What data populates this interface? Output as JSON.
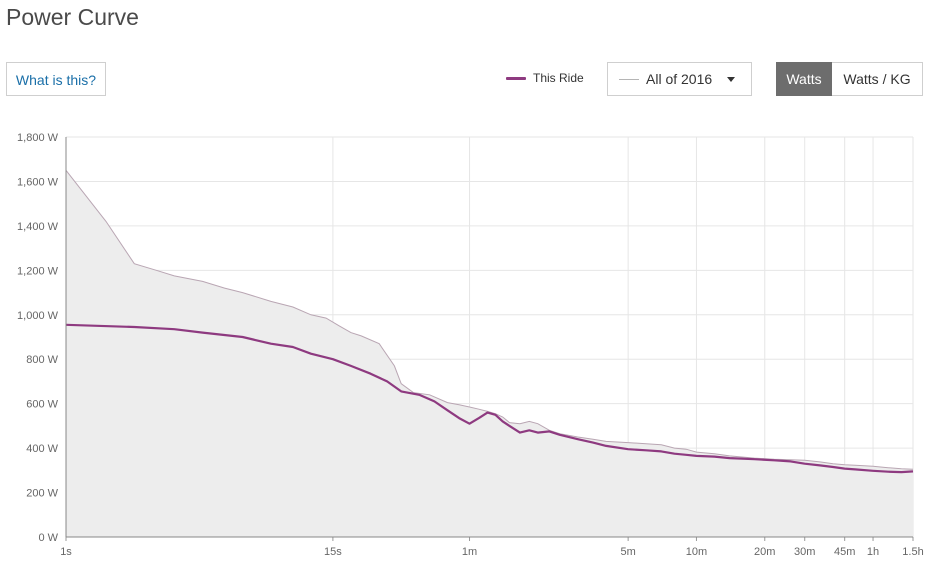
{
  "header": {
    "title": "Power Curve"
  },
  "help_button": {
    "label": "What is this?"
  },
  "legend": {
    "this_ride_label": "This Ride"
  },
  "range_select": {
    "selected": "All of 2016"
  },
  "unit_toggle": {
    "watts_label": "Watts",
    "wkg_label": "Watts / KG",
    "active": "Watts"
  },
  "colors": {
    "this_ride": "#8e3a80",
    "all_2016": "#b9a6b3",
    "all_2016_fill": "#ededed",
    "grid": "#e6e6e6",
    "active_toggle": "#6d6d6d"
  },
  "chart_data": {
    "type": "area",
    "x_scale": "log",
    "x_unit": "seconds",
    "y_unit": "W",
    "ylim": [
      0,
      1800
    ],
    "xlim": [
      1,
      5400
    ],
    "grid": true,
    "y_ticks": [
      {
        "value": 0,
        "label": "0 W"
      },
      {
        "value": 200,
        "label": "200 W"
      },
      {
        "value": 400,
        "label": "400 W"
      },
      {
        "value": 600,
        "label": "600 W"
      },
      {
        "value": 800,
        "label": "800 W"
      },
      {
        "value": 1000,
        "label": "1,000 W"
      },
      {
        "value": 1200,
        "label": "1,200 W"
      },
      {
        "value": 1400,
        "label": "1,400 W"
      },
      {
        "value": 1600,
        "label": "1,600 W"
      },
      {
        "value": 1800,
        "label": "1,800 W"
      }
    ],
    "x_ticks": [
      {
        "value": 1,
        "label": "1s"
      },
      {
        "value": 15,
        "label": "15s"
      },
      {
        "value": 60,
        "label": "1m"
      },
      {
        "value": 300,
        "label": "5m"
      },
      {
        "value": 600,
        "label": "10m"
      },
      {
        "value": 1200,
        "label": "20m"
      },
      {
        "value": 1800,
        "label": "30m"
      },
      {
        "value": 2700,
        "label": "45m"
      },
      {
        "value": 3600,
        "label": "1h"
      },
      {
        "value": 5400,
        "label": "1.5h"
      }
    ],
    "series": [
      {
        "name": "This Ride",
        "x": [
          1,
          2,
          3,
          4,
          6,
          8,
          10,
          12,
          15,
          18,
          22,
          26,
          30,
          36,
          42,
          48,
          54,
          60,
          66,
          72,
          78,
          84,
          90,
          100,
          110,
          120,
          135,
          150,
          180,
          210,
          240,
          300,
          360,
          420,
          480,
          540,
          600,
          720,
          840,
          1080,
          1320,
          1560,
          1800,
          2100,
          2400,
          2700,
          3000,
          3600,
          4200,
          4800,
          5400
        ],
        "values": [
          955,
          945,
          935,
          920,
          900,
          870,
          855,
          825,
          800,
          770,
          735,
          700,
          655,
          640,
          610,
          570,
          535,
          510,
          535,
          560,
          550,
          520,
          500,
          470,
          480,
          470,
          475,
          460,
          440,
          425,
          410,
          395,
          390,
          385,
          375,
          370,
          365,
          362,
          355,
          350,
          345,
          340,
          330,
          322,
          315,
          308,
          304,
          298,
          294,
          292,
          295
        ]
      },
      {
        "name": "All of 2016",
        "x": [
          1,
          1.5,
          2,
          2.5,
          3,
          4,
          5,
          6,
          8,
          10,
          12,
          14,
          16,
          18,
          20,
          24,
          28,
          30,
          34,
          40,
          48,
          54,
          60,
          66,
          72,
          78,
          84,
          90,
          100,
          110,
          120,
          135,
          150,
          180,
          210,
          240,
          300,
          360,
          420,
          480,
          540,
          600,
          720,
          840,
          1080,
          1320,
          1560,
          1800,
          2100,
          2400,
          2700,
          3000,
          3600,
          4200,
          4800,
          5400
        ],
        "values": [
          1650,
          1420,
          1230,
          1200,
          1175,
          1150,
          1120,
          1100,
          1060,
          1035,
          1000,
          985,
          950,
          920,
          905,
          870,
          770,
          690,
          650,
          640,
          605,
          595,
          585,
          575,
          565,
          555,
          540,
          515,
          510,
          520,
          510,
          480,
          465,
          450,
          440,
          430,
          425,
          420,
          415,
          400,
          395,
          382,
          375,
          365,
          355,
          350,
          348,
          345,
          338,
          330,
          325,
          323,
          318,
          312,
          307,
          305
        ]
      }
    ]
  }
}
